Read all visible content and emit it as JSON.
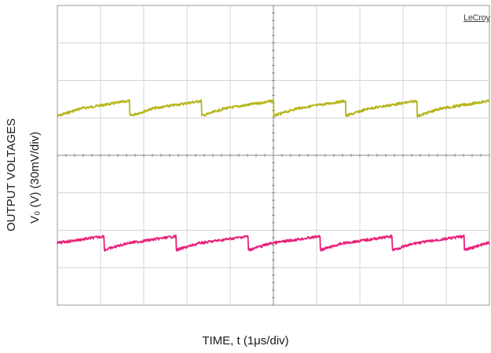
{
  "chart_data": {
    "type": "line",
    "title": "",
    "brand": "LeCroy",
    "xlabel": "TIME, t (1μs/div)",
    "ylabel": [
      "OUTPUT VOLTAGES",
      "V₀ (V) (30mV/div)"
    ],
    "x_divisions": 10,
    "y_divisions": 8,
    "grid": true,
    "series": [
      {
        "color": "#b5b51a",
        "baseline_div": 2.7,
        "ripple_div": 0.22,
        "periods": 6
      },
      {
        "color": "#e8207a",
        "baseline_div": 6.3,
        "ripple_div": 0.2,
        "periods": 6
      }
    ]
  }
}
